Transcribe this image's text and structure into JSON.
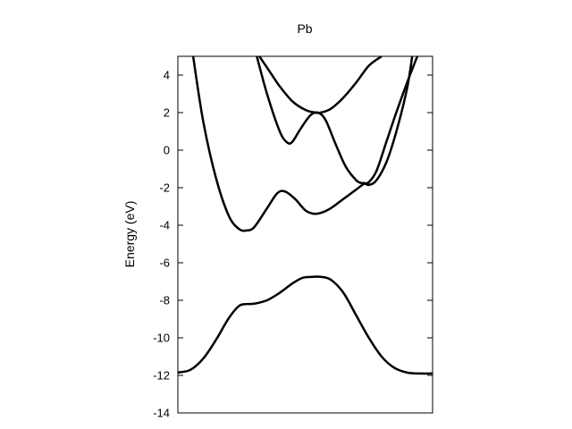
{
  "chart_data": {
    "type": "line",
    "title": "Pb",
    "xlabel": "",
    "ylabel": "Energy (eV)",
    "xlim": [
      0,
      1
    ],
    "ylim": [
      -14,
      5
    ],
    "yticks": [
      4,
      2,
      0,
      -2,
      -4,
      -6,
      -8,
      -10,
      -12,
      -14
    ],
    "ytick_labels": [
      "4",
      "2",
      "0",
      "-2",
      "-4",
      "-6",
      "-8",
      "-10",
      "-12",
      "-14"
    ],
    "grid": false,
    "legend": false,
    "line_color": "#000000",
    "series": [
      {
        "x": [
          0.0,
          0.05,
          0.1,
          0.15,
          0.2,
          0.24,
          0.27,
          0.3,
          0.35,
          0.4,
          0.45,
          0.49,
          0.53,
          0.56,
          0.6,
          0.65,
          0.7,
          0.75,
          0.8,
          0.85,
          0.9,
          0.95,
          1.0
        ],
        "y": [
          -11.85,
          -11.7,
          -11.1,
          -10.1,
          -8.95,
          -8.3,
          -8.2,
          -8.18,
          -8.0,
          -7.6,
          -7.1,
          -6.8,
          -6.75,
          -6.75,
          -6.9,
          -7.6,
          -8.8,
          -10.0,
          -11.0,
          -11.6,
          -11.85,
          -11.9,
          -11.9
        ]
      },
      {
        "x": [
          0.06,
          0.1,
          0.15,
          0.2,
          0.24,
          0.27,
          0.3,
          0.35,
          0.39,
          0.42,
          0.46,
          0.5,
          0.53,
          0.56,
          0.6,
          0.65,
          0.7,
          0.73,
          0.75,
          0.78,
          0.82,
          0.86,
          0.9,
          0.94
        ],
        "y": [
          5.0,
          1.5,
          -1.5,
          -3.5,
          -4.2,
          -4.28,
          -4.1,
          -3.1,
          -2.3,
          -2.2,
          -2.6,
          -3.2,
          -3.38,
          -3.35,
          -3.1,
          -2.6,
          -2.1,
          -1.8,
          -1.7,
          -1.1,
          0.5,
          2.1,
          3.6,
          5.0
        ]
      },
      {
        "x": [
          0.31,
          0.35,
          0.4,
          0.43,
          0.45,
          0.48,
          0.52,
          0.55,
          0.58,
          0.62,
          0.66,
          0.7,
          0.72,
          0.73,
          0.75,
          0.78,
          0.82,
          0.86,
          0.9,
          0.92
        ],
        "y": [
          5.0,
          3.0,
          1.0,
          0.4,
          0.45,
          1.1,
          1.85,
          2.0,
          1.6,
          0.3,
          -0.9,
          -1.6,
          -1.75,
          -1.75,
          -1.85,
          -1.6,
          -0.6,
          1.1,
          3.3,
          5.0
        ]
      },
      {
        "x": [
          0.32,
          0.36,
          0.4,
          0.45,
          0.5,
          0.54,
          0.56,
          0.6,
          0.65,
          0.7,
          0.75,
          0.8
        ],
        "y": [
          5.0,
          4.2,
          3.4,
          2.6,
          2.15,
          2.0,
          2.0,
          2.2,
          2.8,
          3.6,
          4.5,
          5.0
        ]
      }
    ]
  }
}
